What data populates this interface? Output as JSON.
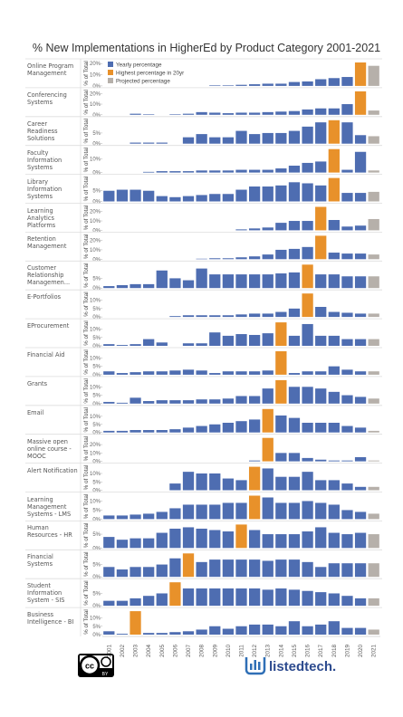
{
  "chart_data": {
    "type": "bar",
    "title": "% New Implementations in HigherEd by Product Category 2001-2021",
    "y_label": "% of Total",
    "categories": [
      "2001",
      "2002",
      "2003",
      "2004",
      "2005",
      "2006",
      "2007",
      "2008",
      "2009",
      "2010",
      "2011",
      "2012",
      "2013",
      "2014",
      "2015",
      "2016",
      "2017",
      "2018",
      "2019",
      "2020",
      "2021"
    ],
    "legend": [
      {
        "name": "Yearly percentage",
        "color": "#4e6db1"
      },
      {
        "name": "Highest percentage in 20yr",
        "color": "#e8912a"
      },
      {
        "name": "Projected percentage",
        "color": "#b6b0aa"
      }
    ],
    "panels": [
      {
        "name": "Online Program Management",
        "ylim": [
          0,
          21
        ],
        "yticks": [
          {
            "value": 0,
            "label": "0%"
          },
          {
            "value": 10,
            "label": "10%"
          },
          {
            "value": 20,
            "label": "20%"
          }
        ],
        "values": [
          0,
          0,
          0,
          0,
          0,
          0,
          0,
          0,
          0.5,
          0.5,
          1,
          1.5,
          2,
          2,
          3.5,
          4,
          6,
          7,
          8,
          21,
          18
        ]
      },
      {
        "name": "Conferencing Systems",
        "ylim": [
          0,
          22
        ],
        "yticks": [
          {
            "value": 0,
            "label": "0%"
          },
          {
            "value": 10,
            "label": "10%"
          },
          {
            "value": 20,
            "label": "20%"
          }
        ],
        "values": [
          0,
          0,
          1,
          0.5,
          0,
          0.5,
          1,
          2.5,
          2,
          1.5,
          2,
          2,
          2.5,
          3,
          3.5,
          5,
          6,
          6,
          10,
          22,
          4
        ]
      },
      {
        "name": "Career Readiness Solutions",
        "ylim": [
          0,
          11
        ],
        "yticks": [
          {
            "value": 0,
            "label": "0%"
          },
          {
            "value": 5,
            "label": "5%"
          }
        ],
        "values": [
          0,
          0,
          0.5,
          0.5,
          0.5,
          0,
          3,
          4.5,
          3,
          3,
          6,
          4.5,
          5,
          5,
          6,
          8,
          10,
          11,
          10,
          4,
          3.5
        ]
      },
      {
        "name": "Faculty Information Systems",
        "ylim": [
          0,
          17
        ],
        "yticks": [
          {
            "value": 0,
            "label": "0%"
          },
          {
            "value": 10,
            "label": "10%"
          }
        ],
        "values": [
          0,
          0,
          0,
          0.5,
          1,
          1,
          1,
          1.5,
          1.5,
          1.5,
          2,
          2,
          2,
          3,
          5,
          7,
          8,
          17,
          2,
          15,
          1.5
        ]
      },
      {
        "name": "Library Information Systems",
        "ylim": [
          0,
          11
        ],
        "yticks": [
          {
            "value": 0,
            "label": "0%"
          },
          {
            "value": 5,
            "label": "5%"
          }
        ],
        "values": [
          5,
          5.5,
          5.5,
          5,
          2.5,
          2,
          2.5,
          3,
          3.5,
          3.5,
          5.5,
          7,
          7,
          7.5,
          9,
          8.5,
          7.5,
          11,
          4,
          4,
          4.5
        ]
      },
      {
        "name": "Learning Analytics Platforms",
        "ylim": [
          0,
          25
        ],
        "yticks": [
          {
            "value": 0,
            "label": "0%"
          },
          {
            "value": 10,
            "label": "10%"
          },
          {
            "value": 20,
            "label": "20%"
          }
        ],
        "values": [
          0,
          0,
          0,
          0,
          0,
          0,
          0,
          0,
          0,
          0,
          1,
          2,
          3,
          8,
          10,
          10,
          25,
          11,
          4,
          5,
          12
        ]
      },
      {
        "name": "Retention Management",
        "ylim": [
          0,
          25
        ],
        "yticks": [
          {
            "value": 0,
            "label": "0%"
          },
          {
            "value": 10,
            "label": "10%"
          },
          {
            "value": 20,
            "label": "20%"
          }
        ],
        "values": [
          0,
          0,
          0,
          0,
          0,
          0,
          0,
          0.5,
          1,
          1,
          2,
          3,
          5,
          10,
          11,
          13,
          25,
          7,
          6,
          6,
          5
        ]
      },
      {
        "name": "Customer Relationship Managemen...",
        "ylim": [
          0,
          12
        ],
        "yticks": [
          {
            "value": 0,
            "label": "0%"
          },
          {
            "value": 5,
            "label": "5%"
          }
        ],
        "values": [
          1,
          1.5,
          2,
          2,
          9,
          5,
          4,
          10,
          7,
          7,
          7,
          7,
          7,
          7.5,
          8,
          12,
          7,
          7,
          6,
          6,
          6
        ]
      },
      {
        "name": "E-Portfolios",
        "ylim": [
          0,
          14
        ],
        "yticks": [
          {
            "value": 0,
            "label": "0%"
          },
          {
            "value": 5,
            "label": "5%"
          },
          {
            "value": 10,
            "label": "10%"
          }
        ],
        "values": [
          0,
          0,
          0,
          0,
          0,
          0.5,
          1,
          1,
          1,
          1,
          1.5,
          2,
          2,
          3,
          5,
          14,
          6,
          3,
          2.5,
          2,
          2
        ]
      },
      {
        "name": "EProcurement",
        "ylim": [
          0,
          14
        ],
        "yticks": [
          {
            "value": 0,
            "label": "0%"
          },
          {
            "value": 5,
            "label": "5%"
          },
          {
            "value": 10,
            "label": "10%"
          }
        ],
        "values": [
          1,
          0.5,
          1,
          4,
          2,
          0,
          1.5,
          1.5,
          8,
          6,
          7,
          6.5,
          7.5,
          14,
          6,
          13,
          6,
          6,
          4,
          4,
          4
        ]
      },
      {
        "name": "Financial Aid",
        "ylim": [
          0,
          14
        ],
        "yticks": [
          {
            "value": 0,
            "label": "0%"
          },
          {
            "value": 5,
            "label": "5%"
          },
          {
            "value": 10,
            "label": "10%"
          }
        ],
        "values": [
          2,
          1,
          1.5,
          2,
          2,
          2.5,
          3,
          2.5,
          1,
          2,
          2,
          2,
          2.5,
          14,
          1,
          2,
          2,
          5,
          3,
          2,
          2
        ]
      },
      {
        "name": "Grants",
        "ylim": [
          0,
          14
        ],
        "yticks": [
          {
            "value": 0,
            "label": "0%"
          },
          {
            "value": 5,
            "label": "5%"
          },
          {
            "value": 10,
            "label": "10%"
          }
        ],
        "values": [
          1,
          0.5,
          3.5,
          1.5,
          2,
          2,
          2,
          2.5,
          2.5,
          3,
          4.5,
          4.5,
          9,
          14,
          10,
          10,
          9,
          7,
          5,
          4,
          3
        ]
      },
      {
        "name": "Email",
        "ylim": [
          0,
          14.5
        ],
        "yticks": [
          {
            "value": 0,
            "label": "0%"
          },
          {
            "value": 5,
            "label": "5%"
          },
          {
            "value": 10,
            "label": "10%"
          }
        ],
        "values": [
          1,
          1,
          1.5,
          1.5,
          1.5,
          2,
          3,
          4,
          5,
          6,
          7,
          8,
          14.5,
          10.5,
          9,
          6,
          6,
          6,
          4,
          3,
          1
        ]
      },
      {
        "name": "Massive open online course - MOOC",
        "ylim": [
          0,
          28
        ],
        "yticks": [
          {
            "value": 0,
            "label": "0%"
          },
          {
            "value": 10,
            "label": "10%"
          },
          {
            "value": 20,
            "label": "20%"
          }
        ],
        "values": [
          0,
          0,
          0,
          0,
          0,
          0,
          0,
          0,
          0,
          0,
          0,
          1,
          28,
          10,
          10,
          4,
          2,
          1,
          1,
          5,
          1
        ]
      },
      {
        "name": "Alert Notification",
        "ylim": [
          0,
          14
        ],
        "yticks": [
          {
            "value": 0,
            "label": "0%"
          },
          {
            "value": 5,
            "label": "5%"
          },
          {
            "value": 10,
            "label": "10%"
          }
        ],
        "values": [
          0,
          0,
          0,
          0,
          0,
          4,
          11,
          10,
          10,
          7,
          6,
          14,
          13,
          8,
          8,
          11,
          6,
          6,
          4,
          2,
          2
        ]
      },
      {
        "name": "Learning Management Systems - LMS",
        "ylim": [
          0,
          13
        ],
        "yticks": [
          {
            "value": 0,
            "label": "0%"
          },
          {
            "value": 5,
            "label": "5%"
          },
          {
            "value": 10,
            "label": "10%"
          }
        ],
        "values": [
          2,
          2,
          2.5,
          3,
          4,
          6,
          8,
          8,
          8,
          9,
          9,
          13,
          12,
          9,
          9,
          10,
          9,
          8,
          5,
          4,
          3
        ]
      },
      {
        "name": "Human Resources - HR",
        "ylim": [
          0,
          8.5
        ],
        "yticks": [
          {
            "value": 0,
            "label": "0%"
          },
          {
            "value": 5,
            "label": "5%"
          }
        ],
        "values": [
          4,
          3,
          3.5,
          3.5,
          5.5,
          7,
          7.5,
          7,
          6.5,
          6,
          8.5,
          6.5,
          5,
          5,
          5,
          6,
          7.5,
          5.5,
          5,
          5.5,
          5
        ]
      },
      {
        "name": "Financial Systems",
        "ylim": [
          0,
          9.5
        ],
        "yticks": [
          {
            "value": 0,
            "label": "0%"
          },
          {
            "value": 5,
            "label": "5%"
          }
        ],
        "values": [
          4,
          3,
          4,
          4,
          5,
          7.5,
          9.5,
          6,
          7,
          7,
          7,
          7,
          6.5,
          7,
          7,
          6,
          4,
          5.5,
          5.5,
          5.5,
          5.5
        ]
      },
      {
        "name": "Student Information System - SIS",
        "ylim": [
          0,
          9.5
        ],
        "yticks": [
          {
            "value": 0,
            "label": "0%"
          },
          {
            "value": 5,
            "label": "5%"
          }
        ],
        "values": [
          2,
          2,
          3,
          4,
          5,
          9.5,
          7,
          7,
          7,
          7,
          7,
          7,
          6.5,
          7,
          6.5,
          6,
          5.5,
          5,
          4,
          3,
          3
        ]
      },
      {
        "name": "Business Intelligence - BI",
        "ylim": [
          0,
          14
        ],
        "yticks": [
          {
            "value": 0,
            "label": "0%"
          },
          {
            "value": 5,
            "label": "5%"
          },
          {
            "value": 10,
            "label": "10%"
          }
        ],
        "values": [
          2,
          0.5,
          14,
          1,
          1,
          1.5,
          2,
          3,
          5,
          3.5,
          5,
          6,
          6,
          5,
          8,
          5,
          6,
          8,
          4,
          4,
          3
        ]
      }
    ]
  },
  "footer": {
    "license_icon": "cc",
    "license": "BY",
    "brand": "listedtech."
  }
}
